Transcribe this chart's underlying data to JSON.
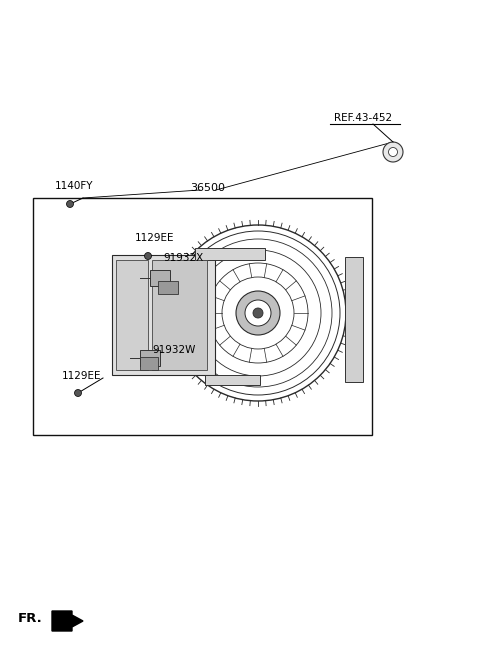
{
  "bg_color": "#ffffff",
  "fig_width": 4.8,
  "fig_height": 6.57,
  "dpi": 100,
  "labels": {
    "ref": "REF.43-452",
    "part_36500": "36500",
    "part_1140FY": "1140FY",
    "part_1129EE_top": "1129EE",
    "part_91932X": "91932X",
    "part_91932W": "91932W",
    "part_1129EE_bot": "1129EE",
    "fr": "FR."
  }
}
